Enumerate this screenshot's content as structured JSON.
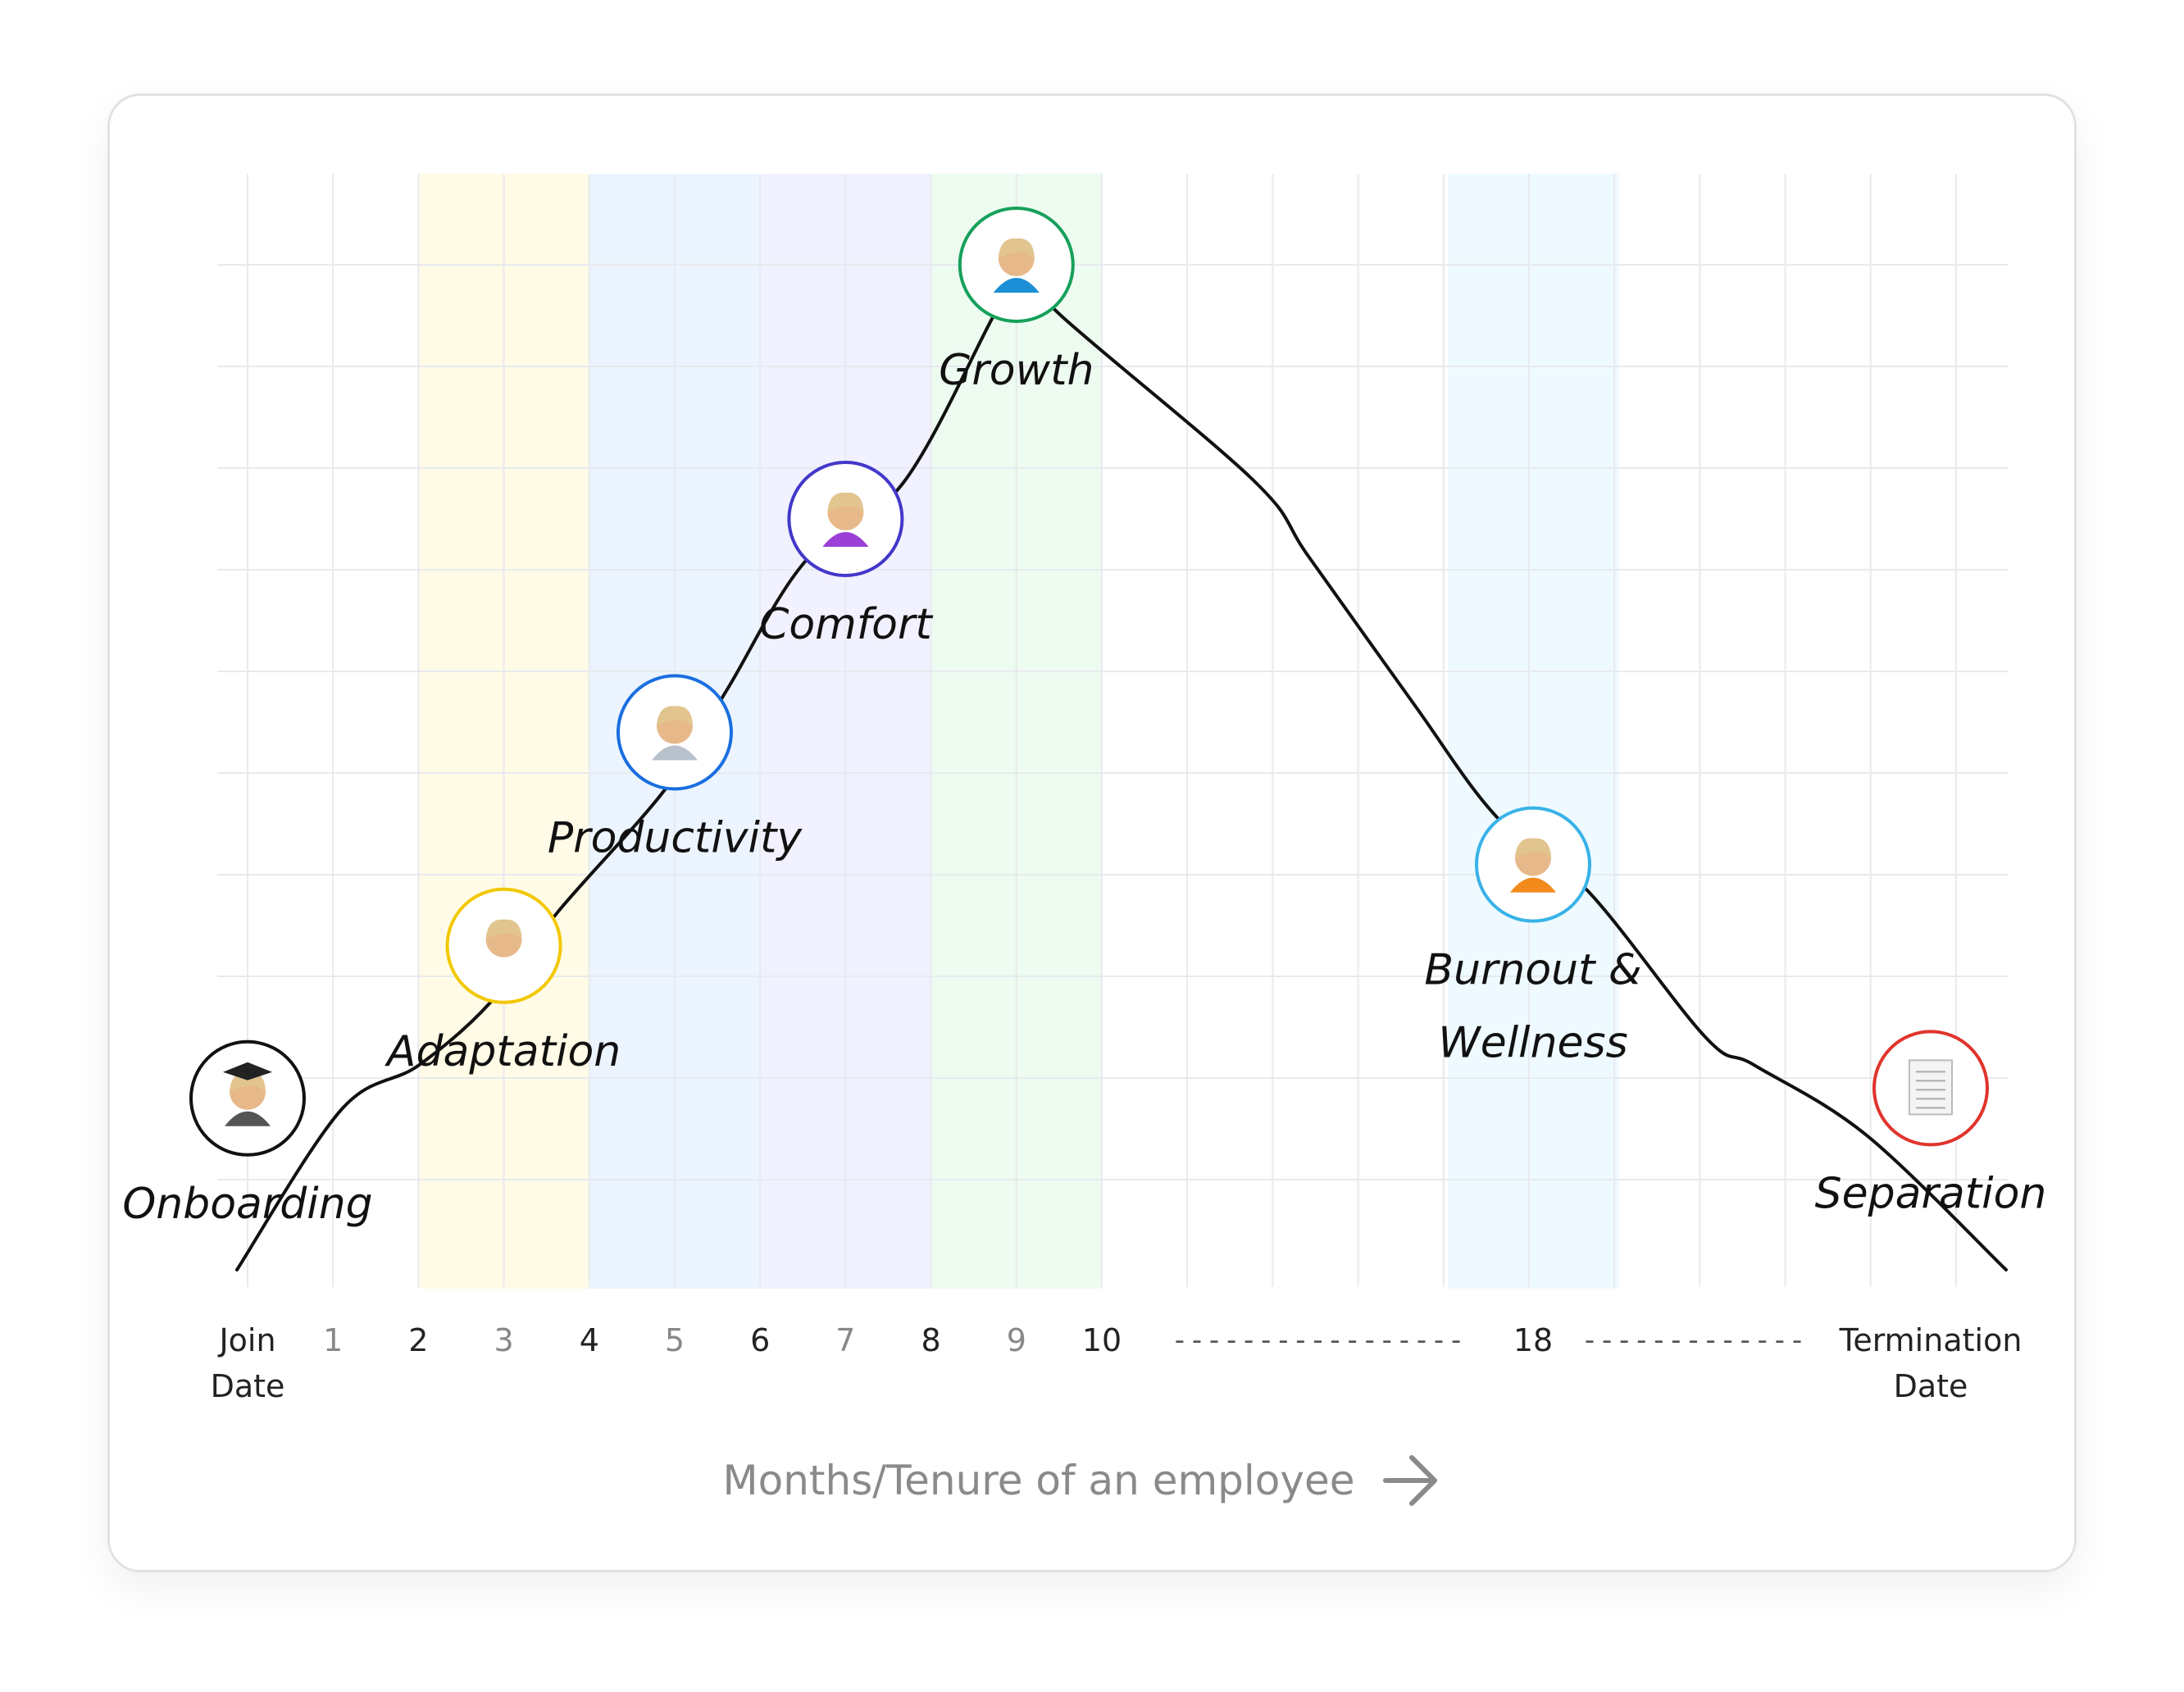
{
  "chart_data": {
    "type": "line",
    "title": "",
    "xlabel": "Months/Tenure of an employee",
    "x_ticks": [
      {
        "label": "Join",
        "label2": "Date",
        "emphasis": "dark"
      },
      {
        "label": "1",
        "emphasis": "light"
      },
      {
        "label": "2",
        "emphasis": "dark"
      },
      {
        "label": "3",
        "emphasis": "light"
      },
      {
        "label": "4",
        "emphasis": "dark"
      },
      {
        "label": "5",
        "emphasis": "light"
      },
      {
        "label": "6",
        "emphasis": "dark"
      },
      {
        "label": "7",
        "emphasis": "light"
      },
      {
        "label": "8",
        "emphasis": "dark"
      },
      {
        "label": "9",
        "emphasis": "light"
      },
      {
        "label": "10",
        "emphasis": "dark"
      },
      {
        "label": "18",
        "emphasis": "dark"
      },
      {
        "label": "Termination",
        "label2": "Date",
        "emphasis": "dark"
      }
    ],
    "axis_break_marks": [
      "- - - - - - - - - - - - - - - - -",
      "- - - - - - - - - - - - -"
    ],
    "grid": true,
    "stages": [
      {
        "name": "Onboarding",
        "x": "Join",
        "level": 1.8,
        "color": "#111111",
        "icon": "graduate-woman-icon"
      },
      {
        "name": "Adaptation",
        "x": "3",
        "level": 3.3,
        "color": "#f2c800",
        "icon": "woman-face-icon"
      },
      {
        "name": "Productivity",
        "x": "5",
        "level": 5.4,
        "color": "#1a6fe0",
        "icon": "woman-laptop-icon"
      },
      {
        "name": "Comfort",
        "x": "7",
        "level": 7.5,
        "color": "#4338ca",
        "icon": "woman-raising-hand-icon"
      },
      {
        "name": "Growth",
        "x": "9",
        "level": 10.0,
        "color": "#16a05a",
        "icon": "woman-teacher-icon"
      },
      {
        "name": "Burnout &",
        "name2": "Wellness",
        "x": "18",
        "level": 4.1,
        "color": "#38b2e8",
        "icon": "woman-meditating-icon"
      },
      {
        "name": "Separation",
        "x": "Termination",
        "level": 1.9,
        "color": "#e0342c",
        "icon": "document-icon"
      }
    ],
    "bands": [
      {
        "from": "2",
        "to": "4",
        "color": "#fffbe6"
      },
      {
        "from": "4",
        "to": "6",
        "color": "#ecf4ff"
      },
      {
        "from": "6",
        "to": "8",
        "color": "#f1f1ff"
      },
      {
        "from": "8",
        "to": "10",
        "color": "#edfbf0"
      },
      {
        "from": "17",
        "to": "19",
        "color": "#eefaff"
      }
    ]
  },
  "arrow_icon": "arrow-right-icon"
}
